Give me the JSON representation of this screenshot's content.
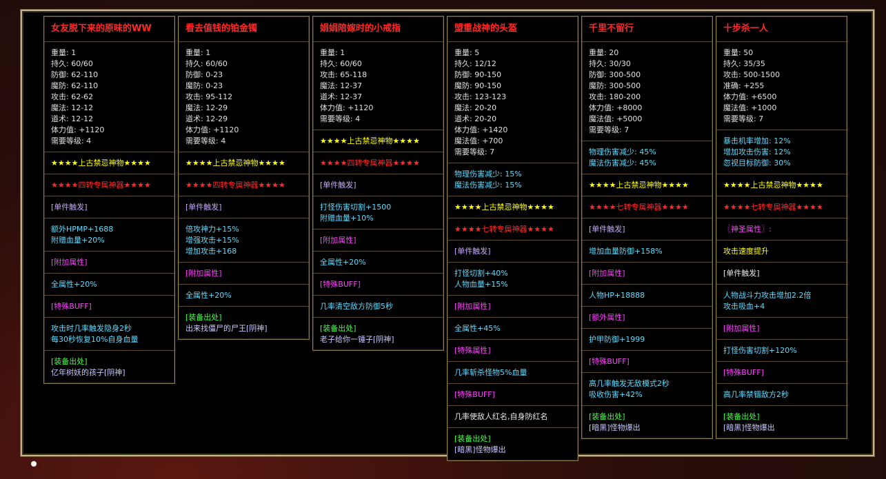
{
  "title_color": "#ff2a2a",
  "items": [
    {
      "name": "女友脱下来的原味的WW",
      "stats": [
        "重量: 1",
        "持久: 60/60",
        "防御: 62-110",
        "魔防: 62-110",
        "攻击: 62-62",
        "魔法: 12-12",
        "道术: 12-12",
        "体力值: +1120",
        "需要等级: 4"
      ],
      "sections": [
        {
          "color": "#ffff00",
          "lines": [
            "★★★★上古禁忌神物★★★★"
          ]
        },
        {
          "color": "#ff2a2a",
          "lines": [
            "★★★★四转专属神器★★★★"
          ]
        },
        {
          "color": "#c8a8ff",
          "lines": [
            "[单件触发]"
          ]
        },
        {
          "color": "#5fdcff",
          "lines": [
            "额外HPMP+1688",
            "附赠血量+20%"
          ]
        },
        {
          "color": "#ff40ff",
          "lines": [
            "[附加属性]"
          ]
        },
        {
          "color": "#5fdcff",
          "lines": [
            "全属性+20%"
          ]
        },
        {
          "color": "#ff40ff",
          "lines": [
            "[特殊BUFF]"
          ]
        },
        {
          "color": "#5fdcff",
          "lines": [
            "攻击时几率触发隐身2秒",
            "每30秒恢复10%自身血量"
          ]
        },
        {
          "colors": [
            "#40ff40",
            "#c8c8ff"
          ],
          "lines": [
            "[装备出处]",
            "亿年树妖的孩子[阴神]"
          ]
        }
      ]
    },
    {
      "name": "看去值钱的铂金镯",
      "stats": [
        "重量: 1",
        "持久: 60/60",
        "防御: 0-23",
        "魔防: 0-23",
        "攻击: 95-112",
        "魔法: 12-29",
        "道术: 12-29",
        "体力值: +1120",
        "需要等级: 4"
      ],
      "sections": [
        {
          "color": "#ffff00",
          "lines": [
            "★★★★上古禁忌神物★★★★"
          ]
        },
        {
          "color": "#ff2a2a",
          "lines": [
            "★★★★四转专属神器★★★★"
          ]
        },
        {
          "color": "#c8a8ff",
          "lines": [
            "[单件触发]"
          ]
        },
        {
          "color": "#5fdcff",
          "lines": [
            "倍攻神力+15%",
            "增强攻击+15%",
            "增加攻击+168"
          ]
        },
        {
          "color": "#ff40ff",
          "lines": [
            "[附加属性]"
          ]
        },
        {
          "color": "#5fdcff",
          "lines": [
            "全属性+20%"
          ]
        },
        {
          "colors": [
            "#40ff40",
            "#c8c8ff"
          ],
          "lines": [
            "[装备出处]",
            "出来找僵尸的尸王[阴神]"
          ]
        }
      ]
    },
    {
      "name": "娟娟陪嫁时的小戒指",
      "stats": [
        "重量: 1",
        "持久: 60/60",
        "攻击: 65-118",
        "魔法: 12-37",
        "道术: 12-37",
        "体力值: +1120",
        "需要等级: 4"
      ],
      "sections": [
        {
          "color": "#ffff00",
          "lines": [
            "★★★★上古禁忌神物★★★★"
          ]
        },
        {
          "color": "#ff2a2a",
          "lines": [
            "★★★★四转专属神器★★★★"
          ]
        },
        {
          "color": "#c8a8ff",
          "lines": [
            "[单件触发]"
          ]
        },
        {
          "color": "#5fdcff",
          "lines": [
            "打怪伤害切割+1500",
            "附赠血量+10%"
          ]
        },
        {
          "color": "#ff40ff",
          "lines": [
            "[附加属性]"
          ]
        },
        {
          "color": "#5fdcff",
          "lines": [
            "全属性+20%"
          ]
        },
        {
          "color": "#ff40ff",
          "lines": [
            "[特殊BUFF]"
          ]
        },
        {
          "color": "#5fdcff",
          "lines": [
            "几率清空敌方防御5秒"
          ]
        },
        {
          "colors": [
            "#40ff40",
            "#c8c8ff"
          ],
          "lines": [
            "[装备出处]",
            "老子给你一锤子[阴神]"
          ]
        }
      ]
    },
    {
      "name": "盟重战神的头盔",
      "stats": [
        "重量: 5",
        "持久: 12/12",
        "防御: 90-150",
        "魔防: 90-150",
        "攻击: 123-123",
        "魔法: 20-20",
        "道术: 20-20",
        "体力值: +1420",
        "魔法值: +700",
        "需要等级: 7"
      ],
      "sections": [
        {
          "color": "#5fdcff",
          "lines": [
            "物理伤害减少: 15%",
            "魔法伤害减少: 15%"
          ]
        },
        {
          "color": "#ffff00",
          "lines": [
            "★★★★上古禁忌神物★★★★"
          ]
        },
        {
          "color": "#ff2a2a",
          "lines": [
            "★★★★七转专属神器★★★★"
          ]
        },
        {
          "color": "#c8a8ff",
          "lines": [
            "[单件触发]"
          ]
        },
        {
          "color": "#5fdcff",
          "lines": [
            "打怪切割+40%",
            "人物血量+15%"
          ]
        },
        {
          "color": "#ff40ff",
          "lines": [
            "[附加属性]"
          ]
        },
        {
          "color": "#5fdcff",
          "lines": [
            "全属性+45%"
          ]
        },
        {
          "color": "#ff40ff",
          "lines": [
            "[特殊属性]"
          ]
        },
        {
          "color": "#5fdcff",
          "lines": [
            "几率斩杀怪物5%血量"
          ]
        },
        {
          "color": "#ff40ff",
          "lines": [
            "[特殊BUFF]"
          ]
        },
        {
          "color": "#e8e8e8",
          "lines": [
            "几率使敌人红名,自身防红名"
          ]
        },
        {
          "colors": [
            "#40ff40",
            "#c8c8ff"
          ],
          "lines": [
            "[装备出处]",
            "[暗黑]怪物爆出"
          ]
        }
      ]
    },
    {
      "name": "千里不留行",
      "stats": [
        "重量: 20",
        "持久: 30/30",
        "防御: 300-500",
        "魔防: 300-500",
        "攻击: 180-200",
        "体力值: +8000",
        "魔法值: +5000",
        "需要等级: 7"
      ],
      "sections": [
        {
          "color": "#5fdcff",
          "lines": [
            "物理伤害减少: 45%",
            "魔法伤害减少: 45%"
          ]
        },
        {
          "color": "#ffff00",
          "lines": [
            "★★★★上古禁忌神物★★★★"
          ]
        },
        {
          "color": "#ff2a2a",
          "lines": [
            "★★★★七转专属神器★★★★"
          ]
        },
        {
          "color": "#c8a8ff",
          "lines": [
            "[单件触发]"
          ]
        },
        {
          "color": "#5fdcff",
          "lines": [
            "增加血量防御+158%"
          ]
        },
        {
          "color": "#ff40ff",
          "lines": [
            "[附加属性]"
          ]
        },
        {
          "color": "#5fdcff",
          "lines": [
            "人物HP+18888"
          ]
        },
        {
          "color": "#ff40ff",
          "lines": [
            "[额外属性]"
          ]
        },
        {
          "color": "#5fdcff",
          "lines": [
            "护甲防御+1999"
          ]
        },
        {
          "color": "#ff40ff",
          "lines": [
            "[特殊BUFF]"
          ]
        },
        {
          "color": "#5fdcff",
          "lines": [
            "高几率触发无敌模式2秒",
            "吸收伤害+42%"
          ]
        },
        {
          "colors": [
            "#40ff40",
            "#c8c8ff"
          ],
          "lines": [
            "[装备出处]",
            "[暗黑]怪物爆出"
          ]
        }
      ]
    },
    {
      "name": "十步杀一人",
      "stats": [
        "重量: 50",
        "持久: 35/35",
        "攻击: 500-1500",
        "准确: +255",
        "体力值: +6500",
        "魔法值: +1000",
        "需要等级: 7"
      ],
      "sections": [
        {
          "color": "#5fdcff",
          "lines": [
            "暴击机率增加: 12%",
            "增加攻击伤害: 12%",
            "忽视目标防御: 30%"
          ]
        },
        {
          "color": "#ffff00",
          "lines": [
            "★★★★上古禁忌神物★★★★"
          ]
        },
        {
          "color": "#ff2a2a",
          "lines": [
            "★★★★七转专属神器★★★★"
          ]
        },
        {
          "color": "#ff40ff",
          "lines": [
            "〖神圣属性〗:"
          ]
        },
        {
          "color": "#ffff00",
          "lines": [
            "攻击速度提升"
          ]
        },
        {
          "color": "#e8e8e8",
          "lines": [
            "[单件触发]"
          ]
        },
        {
          "color": "#5fdcff",
          "lines": [
            "人物战斗力攻击增加2.2倍",
            "攻击吸血+4"
          ]
        },
        {
          "color": "#ff40ff",
          "lines": [
            "[附加属性]"
          ]
        },
        {
          "color": "#5fdcff",
          "lines": [
            "打怪伤害切割+120%"
          ]
        },
        {
          "color": "#ff40ff",
          "lines": [
            "[特殊BUFF]"
          ]
        },
        {
          "color": "#5fdcff",
          "lines": [
            "高几率禁锢敌方2秒"
          ]
        },
        {
          "colors": [
            "#40ff40",
            "#c8c8ff"
          ],
          "lines": [
            "[装备出处]",
            "[暗黑]怪物爆出"
          ]
        }
      ]
    }
  ]
}
